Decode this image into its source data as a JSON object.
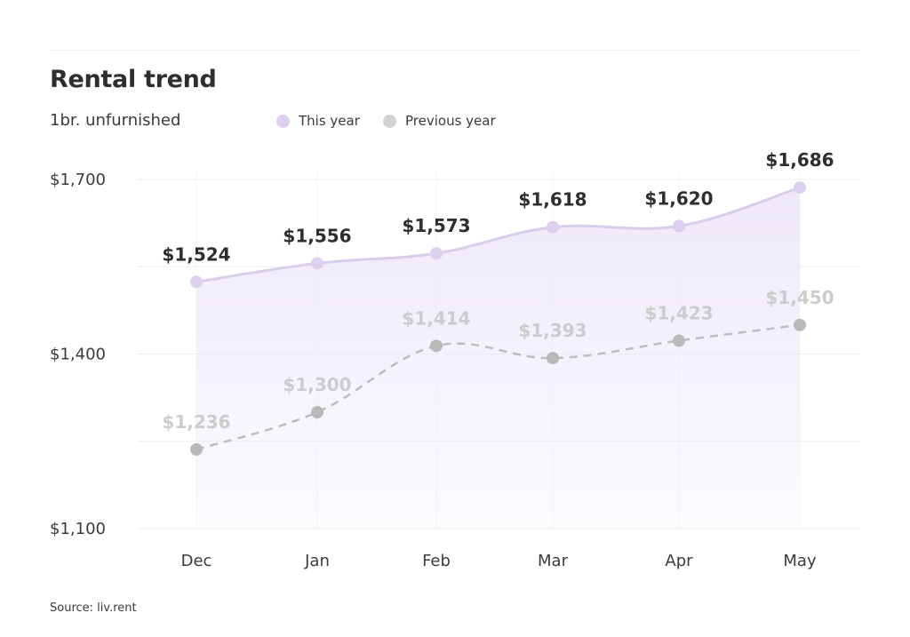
{
  "header": {
    "title": "Rental trend",
    "subtitle": "1br. unfurnished"
  },
  "legend": {
    "this_year": "This year",
    "previous_year": "Previous year"
  },
  "source": "Source: liv.rent",
  "colors": {
    "this_year_line": "#d8cdea",
    "this_year_dot": "#dccff0",
    "this_year_fill": "#ede7f8",
    "previous_year_line": "#bdbdbd",
    "previous_year_dot": "#b9b9b9",
    "legend_previous": "#d2d2d2",
    "gridline": "#eeeeee"
  },
  "chart_data": {
    "type": "line",
    "categories": [
      "Dec",
      "Jan",
      "Feb",
      "Mar",
      "Apr",
      "May"
    ],
    "series": [
      {
        "name": "This year",
        "values": [
          1524,
          1556,
          1573,
          1618,
          1620,
          1686
        ],
        "labels": [
          "$1,524",
          "$1,556",
          "$1,573",
          "$1,618",
          "$1,620",
          "$1,686"
        ],
        "style": "solid, filled area"
      },
      {
        "name": "Previous year",
        "values": [
          1236,
          1300,
          1414,
          1393,
          1423,
          1450
        ],
        "labels": [
          "$1,236",
          "$1,300",
          "$1,414",
          "$1,393",
          "$1,423",
          "$1,450"
        ],
        "style": "dashed"
      }
    ],
    "yticks": [
      1100,
      1400,
      1700
    ],
    "ytick_labels": [
      "$1,100",
      "$1,400",
      "$1,700"
    ],
    "ylim": [
      1100,
      1700
    ],
    "grid": "horizontal",
    "legend_position": "top"
  }
}
